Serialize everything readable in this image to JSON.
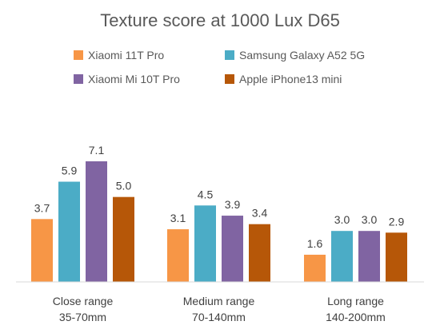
{
  "chart_data": {
    "type": "bar",
    "title": "Texture score at 1000 Lux D65",
    "categories": [
      [
        "Close range",
        "35-70mm"
      ],
      [
        "Medium range",
        "70-140mm"
      ],
      [
        "Long range",
        "140-200mm"
      ]
    ],
    "series": [
      {
        "name": "Xiaomi 11T Pro",
        "color": "#F79646",
        "values": [
          3.7,
          3.1,
          1.6
        ]
      },
      {
        "name": "Samsung Galaxy A52 5G",
        "color": "#4BACC6",
        "values": [
          5.9,
          4.5,
          3.0
        ]
      },
      {
        "name": "Xiaomi Mi 10T Pro",
        "color": "#8064A2",
        "values": [
          7.1,
          3.9,
          3.0
        ]
      },
      {
        "name": "Apple iPhone13 mini",
        "color": "#B65708",
        "values": [
          5.0,
          3.4,
          2.9
        ]
      }
    ],
    "value_labels": [
      [
        "3.7",
        "3.1",
        "1.6"
      ],
      [
        "5.9",
        "4.5",
        "3.0"
      ],
      [
        "7.1",
        "3.9",
        "3.0"
      ],
      [
        "5.0",
        "3.4",
        "2.9"
      ]
    ],
    "ylim": [
      0,
      7.5
    ],
    "grid": false,
    "legend_position": "top"
  }
}
